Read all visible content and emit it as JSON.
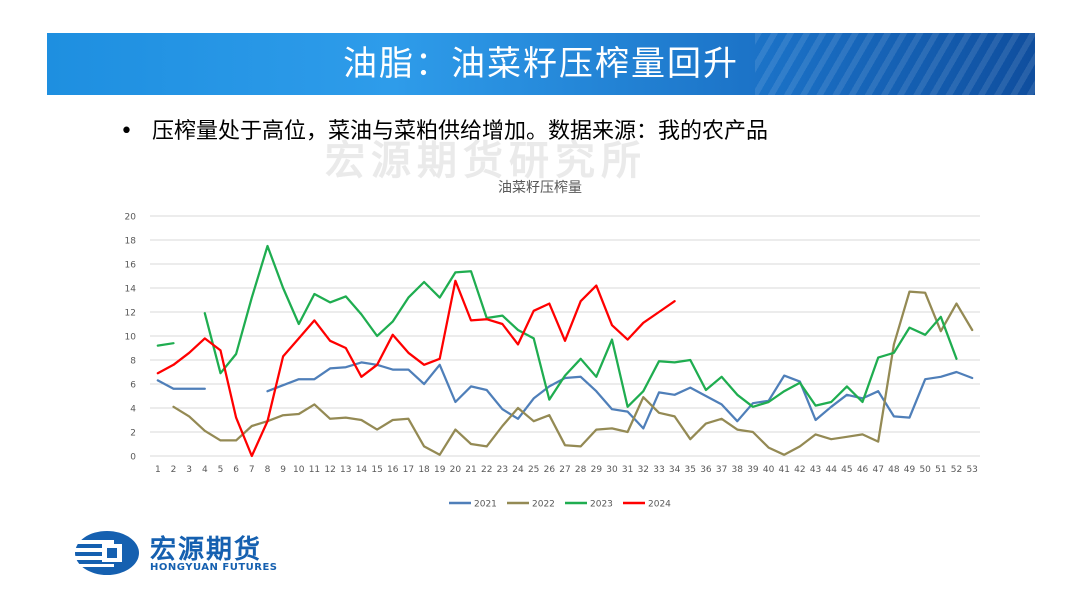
{
  "header": {
    "title": "油脂：油菜籽压榨量回升"
  },
  "bullet": {
    "text": "压榨量处于高位，菜油与菜粕供给增加。数据来源：我的农产品"
  },
  "watermark": {
    "text": "宏源期货研究所"
  },
  "logo": {
    "name_cn": "宏源期货",
    "name_en": "HONGYUAN FUTURES"
  },
  "colors": {
    "banner": "#1e8fe0",
    "brand": "#1560b0"
  },
  "chart_data": {
    "type": "line",
    "title": "油菜籽压榨量",
    "xlabel": "",
    "ylabel": "",
    "ylim": [
      0,
      20
    ],
    "yticks": [
      0,
      2,
      4,
      6,
      8,
      10,
      12,
      14,
      16,
      18,
      20
    ],
    "grid": true,
    "legend_position": "bottom",
    "x": [
      1,
      2,
      3,
      4,
      5,
      6,
      7,
      8,
      9,
      10,
      11,
      12,
      13,
      14,
      15,
      16,
      17,
      18,
      19,
      20,
      21,
      22,
      23,
      24,
      25,
      26,
      27,
      28,
      29,
      30,
      31,
      32,
      33,
      34,
      35,
      36,
      37,
      38,
      39,
      40,
      41,
      42,
      43,
      44,
      45,
      46,
      47,
      48,
      49,
      50,
      51,
      52,
      53
    ],
    "series": [
      {
        "name": "2021",
        "color": "#4f7fb9",
        "values": [
          6.3,
          5.6,
          5.6,
          5.6,
          null,
          null,
          null,
          5.4,
          5.9,
          6.4,
          6.4,
          7.3,
          7.4,
          7.8,
          7.6,
          7.2,
          7.2,
          6.0,
          7.6,
          4.5,
          5.8,
          5.5,
          3.9,
          3.1,
          4.8,
          5.8,
          6.5,
          6.6,
          5.4,
          3.9,
          3.7,
          2.3,
          5.3,
          5.1,
          5.7,
          5.0,
          4.3,
          2.9,
          4.4,
          4.6,
          6.7,
          6.2,
          3.0,
          4.1,
          5.1,
          4.8,
          5.4,
          3.3,
          3.2,
          6.4,
          6.6,
          7.0,
          6.5
        ]
      },
      {
        "name": "2022",
        "color": "#948a54",
        "values": [
          null,
          4.1,
          3.3,
          2.1,
          1.3,
          1.3,
          2.5,
          2.9,
          3.4,
          3.5,
          4.3,
          3.1,
          3.2,
          3.0,
          2.2,
          3.0,
          3.1,
          0.8,
          0.1,
          2.2,
          1.0,
          0.8,
          2.5,
          4.0,
          2.9,
          3.4,
          0.9,
          0.8,
          2.2,
          2.3,
          2.0,
          4.9,
          3.6,
          3.3,
          1.4,
          2.7,
          3.1,
          2.2,
          2.0,
          0.7,
          0.1,
          0.8,
          1.8,
          1.4,
          1.6,
          1.8,
          1.2,
          9.3,
          13.7,
          13.6,
          10.4,
          12.7,
          10.5
        ]
      },
      {
        "name": "2023",
        "color": "#1fad50",
        "values": [
          9.2,
          9.4,
          null,
          11.9,
          6.9,
          8.5,
          13.2,
          17.5,
          14.0,
          11.0,
          13.5,
          12.8,
          13.3,
          11.8,
          10.0,
          11.2,
          13.2,
          14.5,
          13.2,
          15.3,
          15.4,
          11.5,
          11.7,
          10.5,
          9.8,
          4.7,
          6.7,
          8.1,
          6.6,
          9.7,
          4.1,
          5.4,
          7.9,
          7.8,
          8.0,
          5.5,
          6.6,
          5.1,
          4.1,
          4.5,
          5.4,
          6.1,
          4.2,
          4.5,
          5.8,
          4.5,
          8.2,
          8.6,
          10.7,
          10.1,
          11.6,
          8.1,
          null
        ]
      },
      {
        "name": "2024",
        "color": "#ff0000",
        "values": [
          6.9,
          7.6,
          8.6,
          9.8,
          8.8,
          3.2,
          0.0,
          2.9,
          8.3,
          9.8,
          11.3,
          9.6,
          9.0,
          6.6,
          7.6,
          10.1,
          8.6,
          7.6,
          8.1,
          14.6,
          11.3,
          11.4,
          11.0,
          9.3,
          12.1,
          12.7,
          9.6,
          12.9,
          14.2,
          10.9,
          9.7,
          11.1,
          12.0,
          12.9,
          null,
          null,
          null,
          null,
          null,
          null,
          null,
          null,
          null,
          null,
          null,
          null,
          null,
          null,
          null,
          null,
          null,
          null,
          null
        ]
      }
    ]
  }
}
